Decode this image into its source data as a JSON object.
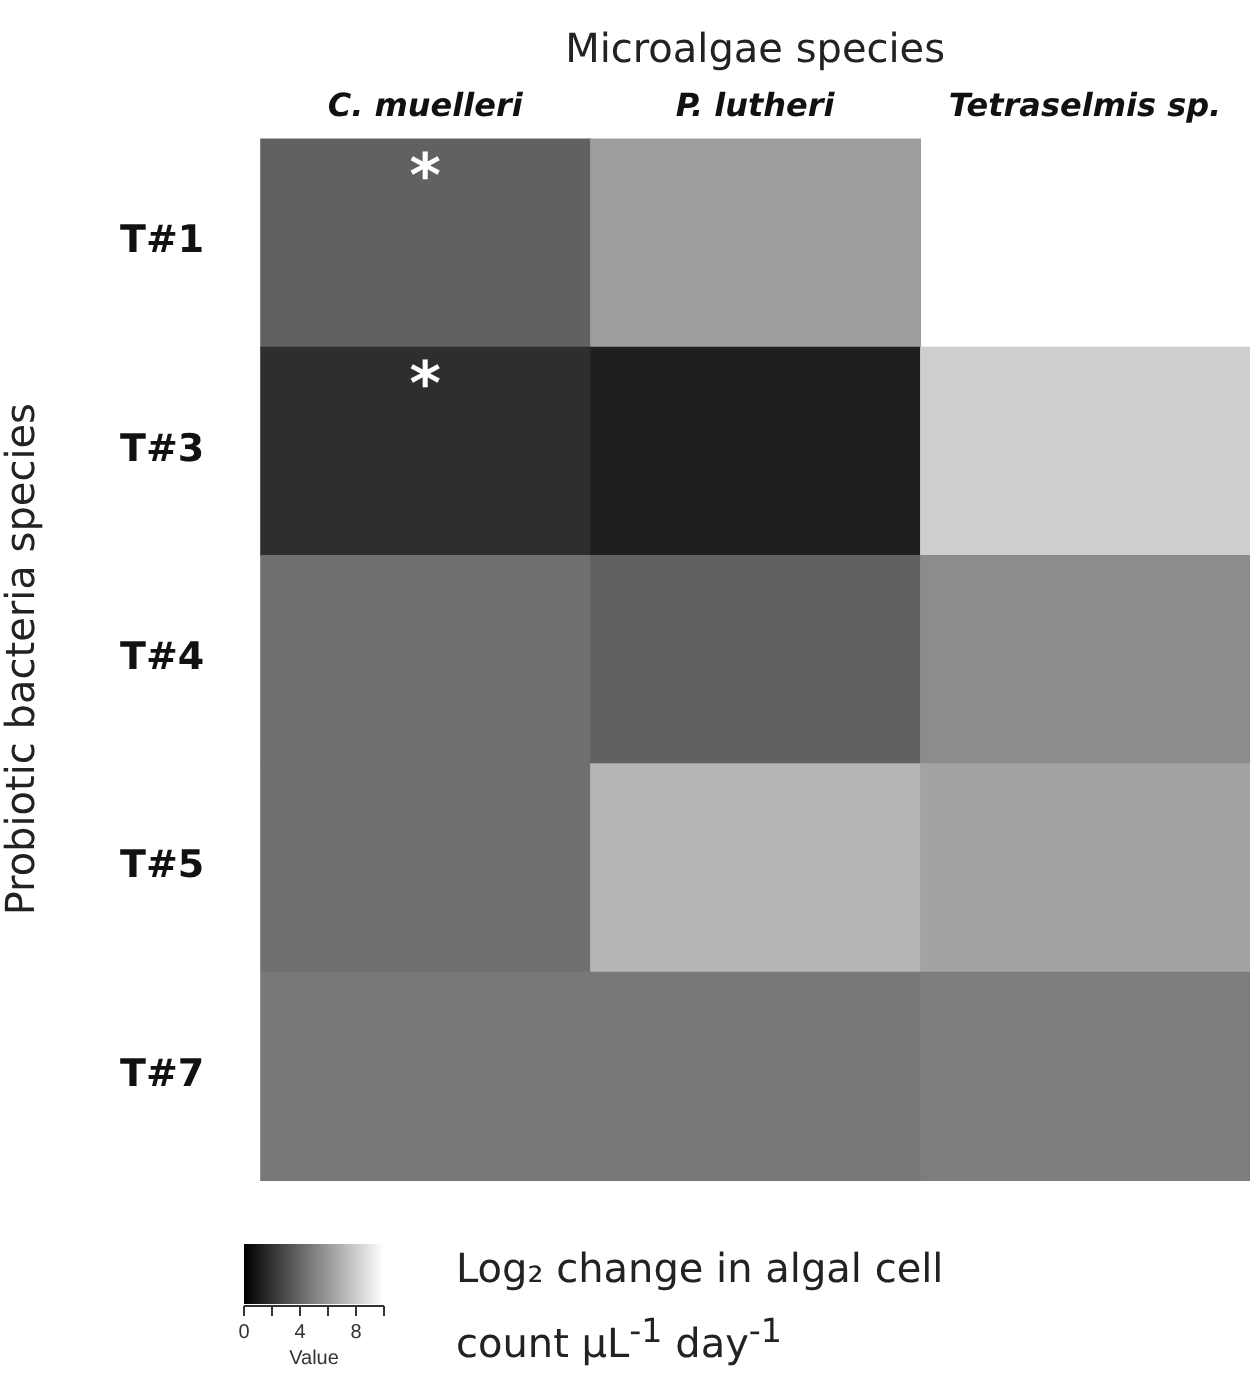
{
  "chart_data": {
    "type": "heatmap",
    "xlabel": "Microalgae species",
    "ylabel": "Probiotic bacteria species",
    "clabel": "Value",
    "categories": [
      "C. muelleri",
      "P. lutheri",
      "Tetraselmis sp."
    ],
    "y_categories": [
      "T#1",
      "T#3",
      "T#4",
      "T#5",
      "T#7"
    ],
    "cells": [
      [
        3.8,
        6.2,
        null
      ],
      [
        1.8,
        1.2,
        8.1
      ],
      [
        4.4,
        3.8,
        5.5
      ],
      [
        4.4,
        7.1,
        6.4
      ],
      [
        4.7,
        4.7,
        4.9
      ]
    ],
    "clim": [
      0,
      10
    ],
    "cticks": [
      0,
      {
        "value": 2,
        "label": null
      },
      4,
      {
        "value": 6,
        "label": null
      },
      8,
      {
        "value": 10,
        "label": null
      }
    ],
    "cell_labels": [
      [
        "*",
        null,
        null
      ],
      [
        "*",
        null,
        null
      ],
      [
        null,
        null,
        null
      ],
      [
        null,
        null,
        null
      ],
      [
        null,
        null,
        null
      ]
    ],
    "annotations": [
      "Log₂ change in algal cell count µL$^{-1}$ day$^{-1}$"
    ]
  }
}
